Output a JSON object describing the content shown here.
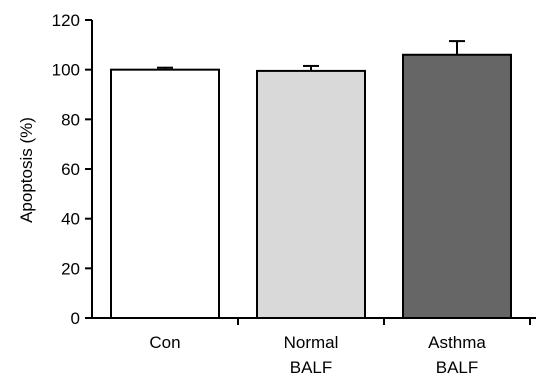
{
  "chart_data": {
    "type": "bar",
    "title": "",
    "xlabel": "",
    "ylabel": "Apoptosis (%)",
    "ylim": [
      0,
      120
    ],
    "yticks": [
      0,
      20,
      40,
      60,
      80,
      100,
      120
    ],
    "grid": false,
    "legend": "none",
    "categories": [
      {
        "lines": [
          "Con"
        ]
      },
      {
        "lines": [
          "Normal",
          "BALF"
        ]
      },
      {
        "lines": [
          "Asthma",
          "BALF"
        ]
      }
    ],
    "values": [
      100,
      99.5,
      106
    ],
    "errors": [
      0.8,
      2,
      5.5
    ],
    "colors": [
      "#ffffff",
      "#d9d9d9",
      "#666666"
    ]
  }
}
